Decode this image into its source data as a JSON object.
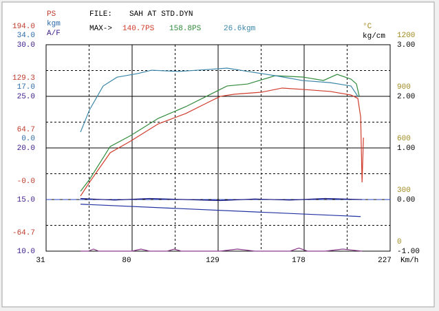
{
  "chart_data": {
    "type": "line",
    "file_label": "FILE:",
    "file": "SAH AT STD.DYN",
    "max_label": "MAX->",
    "max_values": [
      {
        "text": "140.7PS",
        "color": "#d03a2a"
      },
      {
        "text": "158.8PS",
        "color": "#2f8a3a"
      },
      {
        "text": "26.6kgm",
        "color": "#3a86a8"
      }
    ],
    "xlabel": "Km/h",
    "xlim": [
      31,
      227
    ],
    "xticks": [
      31,
      80,
      129,
      178,
      227
    ],
    "ylabel": "A/F",
    "ycolor": "#3a1a8a",
    "ylim": [
      10,
      30
    ],
    "yticks": [
      {
        "value": 30,
        "label": "30.0"
      },
      {
        "value": 25,
        "label": "25.0"
      },
      {
        "value": 20,
        "label": "20.0"
      },
      {
        "value": 15,
        "label": "15.0"
      },
      {
        "value": 10,
        "label": "10.0"
      }
    ],
    "y2label": "kg/cm",
    "y2color": "#000000",
    "y2lim": [
      -1,
      3
    ],
    "y2ticks": [
      {
        "value": 3,
        "label": "3.00"
      },
      {
        "value": 2,
        "label": "2.00"
      },
      {
        "value": 1,
        "label": "1.00"
      },
      {
        "value": 0,
        "label": "0.00"
      },
      {
        "value": -1,
        "label": "-1.00"
      }
    ],
    "y3label": "PS",
    "y3color": "#c0392b",
    "y3lim": [
      -64.7,
      194.0
    ],
    "y3ticks": [
      {
        "value": 194.0,
        "label": "194.0"
      },
      {
        "value": 129.3,
        "label": "129.3"
      },
      {
        "value": 64.7,
        "label": "64.7"
      },
      {
        "value": 0,
        "label": "-0.0"
      },
      {
        "value": -64.7,
        "label": "-64.7"
      }
    ],
    "y4label": "kgm",
    "y4color": "#2a6aa8",
    "y4lim": [
      -34,
      34
    ],
    "y4ticks": [
      {
        "value": 34,
        "label": "34.0"
      },
      {
        "value": 17,
        "label": "17.0"
      },
      {
        "value": 0,
        "label": "0.0"
      }
    ],
    "y5label": "°C",
    "y5color": "#a08a20",
    "y5lim": [
      0,
      1200
    ],
    "y5ticks": [
      1200,
      900,
      600,
      300,
      0
    ],
    "grid": true,
    "series": [
      {
        "color": "#d03a2a",
        "axis": "y3",
        "x": [
          50.6,
          55.7,
          67.5,
          79.2,
          94.9,
          110.6,
          122.3,
          130.2,
          138,
          153.7,
          165.5,
          177.2,
          192.9,
          204.7,
          208.6,
          210.2,
          211,
          211.8
        ],
        "values": [
          4.3,
          21.5,
          58.6,
          73.3,
          94.8,
          107.8,
          120.7,
          129.3,
          131.9,
          134.5,
          139.7,
          138,
          135.4,
          131,
          126.7,
          103.5,
          21.5,
          77.6
        ]
      },
      {
        "color": "#2f8a3a",
        "axis": "y3",
        "x": [
          50.6,
          55.7,
          67.5,
          79.2,
          94.9,
          110.6,
          122.3,
          134.1,
          145.9,
          161.5,
          177.2,
          189,
          196.8,
          204.7,
          207.8,
          209.4
        ],
        "values": [
          10.3,
          25,
          66.4,
          80.2,
          101.7,
          116.4,
          129.3,
          142.3,
          144.8,
          155.2,
          153.5,
          149.2,
          156.9,
          150.9,
          144.8,
          129.3
        ]
      },
      {
        "color": "#3a86a8",
        "axis": "y4",
        "x": [
          50.6,
          55.7,
          63.5,
          71.4,
          83.1,
          91,
          106.7,
          122.3,
          134.1,
          145.9,
          161.5,
          177.2,
          192.9,
          204.7,
          208.6
        ],
        "values": [
          5.2,
          12.5,
          20.4,
          23.3,
          24.5,
          25.6,
          25.2,
          25.8,
          26.3,
          25.2,
          23.8,
          22.2,
          21.5,
          20.4,
          17
        ]
      },
      {
        "color": "#1a1a80",
        "axis": "y2",
        "x": [
          50.6,
          70,
          90,
          110,
          130,
          150,
          170,
          190,
          211
        ],
        "values": [
          0.02,
          -0.01,
          0.02,
          0,
          -0.02,
          0.01,
          -0.01,
          0.02,
          0
        ]
      },
      {
        "color": "#2030a0",
        "axis": "y2",
        "x": [
          50.6,
          210.2
        ],
        "values": [
          -0.09,
          -0.33
        ]
      },
      {
        "color": "#8a3a8a",
        "axis": "y",
        "x": [
          50.6,
          55,
          58,
          61,
          70,
          80,
          85,
          90,
          100,
          104,
          108,
          120,
          130,
          140,
          150,
          160,
          170,
          175,
          180,
          190,
          200,
          211
        ],
        "values": [
          10,
          10,
          10.2,
          10,
          10,
          10,
          10.2,
          10,
          10,
          10.2,
          10,
          10,
          10,
          10.2,
          10,
          10,
          10,
          10.3,
          10,
          10,
          10.2,
          10
        ]
      }
    ]
  }
}
